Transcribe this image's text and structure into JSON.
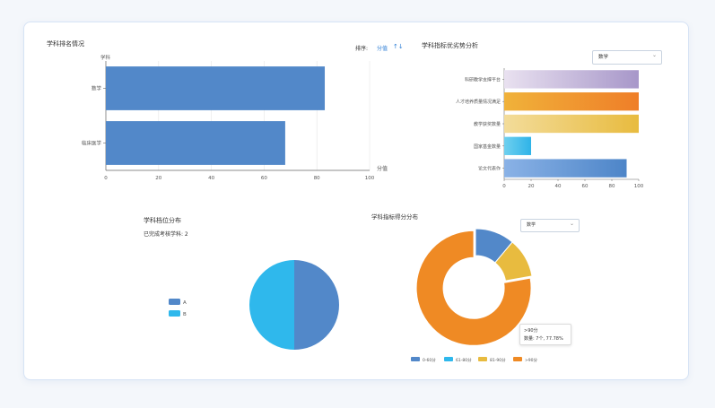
{
  "charts": {
    "ranking": {
      "title": "学科排名情况",
      "ylabel": "学科",
      "xlabel": "分值",
      "sort_label": "排序:",
      "sort_value": "分值",
      "sort_icon": "↑↓"
    },
    "indicator": {
      "title": "学科指标优劣势分析",
      "select_value": "数学"
    },
    "tier": {
      "title": "学科档位分布",
      "subtitle": "已完成考核学科: 2"
    },
    "score": {
      "title": "学科指标得分分布",
      "select_value": "数学",
      "tooltip_title": ">90分",
      "tooltip_value": "数量: 7个, 77.78%"
    }
  },
  "chart_data": [
    {
      "type": "bar",
      "orientation": "horizontal",
      "title": "学科排名情况",
      "ylabel": "学科",
      "xlabel": "分值",
      "categories": [
        "数学",
        "临床医学"
      ],
      "values": [
        83,
        68
      ],
      "xlim": [
        0,
        100
      ],
      "xticks": [
        0,
        20,
        40,
        60,
        80,
        100
      ],
      "color": "#5288c9",
      "grid": true
    },
    {
      "type": "bar",
      "orientation": "horizontal",
      "title": "学科指标优劣势分析",
      "categories": [
        "论文代表作",
        "国家基金数量",
        "教学获奖数量",
        "人才培养质量情况满足",
        "科研教学支撑平台"
      ],
      "values": [
        91,
        20,
        100,
        100,
        100
      ],
      "xlim": [
        0,
        100
      ],
      "xticks": [
        0,
        20,
        40,
        60,
        80,
        100
      ],
      "colors": [
        [
          "#8ab2e6",
          "#4d85c8"
        ],
        [
          "#6fd0ef",
          "#2fb3e8"
        ],
        [
          "#f3dc9a",
          "#e8bb3f"
        ],
        [
          "#f0b23a",
          "#ef7e28"
        ],
        [
          "#e9e1f0",
          "#a797c9"
        ]
      ]
    },
    {
      "type": "pie",
      "title": "学科档位分布",
      "labels": [
        "A",
        "B"
      ],
      "values": [
        1,
        1
      ],
      "colors": [
        "#5288c9",
        "#2fb8ec"
      ],
      "legend": "left"
    },
    {
      "type": "pie",
      "donut": true,
      "title": "学科指标得分分布",
      "labels": [
        "0-60分",
        "61-80分",
        "81-90分",
        ">90分"
      ],
      "values": [
        1,
        0,
        1,
        7
      ],
      "colors": [
        "#5288c9",
        "#2fb8ec",
        "#e8bb3f",
        "#ef8a24"
      ],
      "legend": "bottom"
    }
  ]
}
